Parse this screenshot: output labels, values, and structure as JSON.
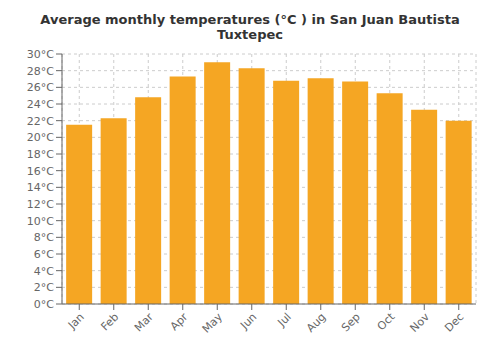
{
  "chart_data": {
    "type": "bar",
    "title": "Average monthly temperatures (°C ) in San Juan Bautista Tuxtepec",
    "categories": [
      "Jan",
      "Feb",
      "Mar",
      "Apr",
      "May",
      "Jun",
      "Jul",
      "Aug",
      "Sep",
      "Oct",
      "Nov",
      "Dec"
    ],
    "values": [
      21.5,
      22.3,
      24.8,
      27.3,
      29.0,
      28.3,
      26.8,
      27.1,
      26.7,
      25.3,
      23.3,
      22.0
    ],
    "color": "#F5A623",
    "ylim": [
      0,
      30
    ],
    "yticks": [
      {
        "value": 0,
        "label": "0°C"
      },
      {
        "value": 2,
        "label": "2°C"
      },
      {
        "value": 4,
        "label": "4°C"
      },
      {
        "value": 6,
        "label": "6°C"
      },
      {
        "value": 8,
        "label": "8°C"
      },
      {
        "value": 10,
        "label": "10°C"
      },
      {
        "value": 12,
        "label": "12°C"
      },
      {
        "value": 14,
        "label": "14°C"
      },
      {
        "value": 16,
        "label": "16°C"
      },
      {
        "value": 18,
        "label": "18°C"
      },
      {
        "value": 20,
        "label": "20°C"
      },
      {
        "value": 22,
        "label": "22°C"
      },
      {
        "value": 24,
        "label": "24°C"
      },
      {
        "value": 26,
        "label": "26°C"
      },
      {
        "value": 28,
        "label": "28°C"
      },
      {
        "value": 30,
        "label": "30°C"
      }
    ],
    "grid": true
  }
}
